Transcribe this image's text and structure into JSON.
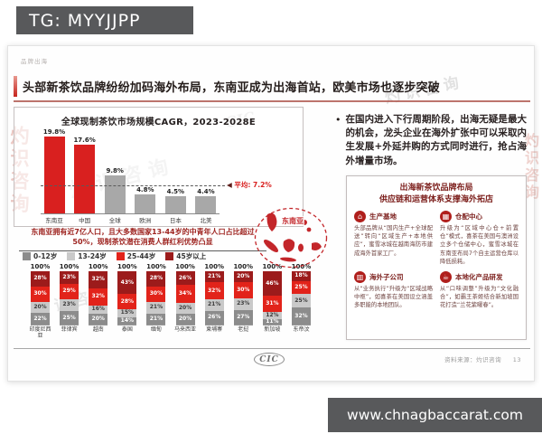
{
  "overlay": {
    "tg_label": "TG: MYYJJPP",
    "site_url": "www.chnagbaccarat.com"
  },
  "slide": {
    "eyebrow": "品牌出海",
    "title": "头部新茶饮品牌纷纷加码海外布局，东南亚成为出海首站，欧美市场也逐步突破",
    "insight": "东南亚拥有近7亿人口，且大多数国家13-44岁的中青年人口占比超过50%，现制茶饮潜在消费人群红利优势凸显",
    "map_label": "东南亚",
    "bullet": "在国内进入下行周期阶段，出海无疑是最大的机会，龙头企业在海外扩张中可以采取内生发展+外延并购的方式同时进行，抢占海外增量市场。",
    "card": {
      "title_line1": "出海新茶饮品牌布局",
      "title_line2": "供应链和运营体系支撑海外拓店",
      "items": [
        {
          "icon": "factory-icon",
          "glyph": "⌂",
          "label": "生产基地",
          "text": "头部品牌从“国内生产+全球配送”转向“区域生产+本地供应”，蜜雪冰城在越南海防市建成海外首家工厂。"
        },
        {
          "icon": "warehouse-icon",
          "glyph": "▦",
          "label": "仓配中心",
          "text": "升级为“区域中心仓+前置仓”模式，喜茶在美国与澳洲设立多个仓储中心，蜜雪冰城在东南亚布局7个自主运营仓库以降低损耗。"
        },
        {
          "icon": "office-building-icon",
          "glyph": "▥",
          "label": "海外子公司",
          "text": "从“业务执行”升级为“区域战略中枢”，如喜茶在美国设立涵盖多职能的本地团队。"
        },
        {
          "icon": "tea-cup-icon",
          "glyph": "☕",
          "label": "本地化产品研发",
          "text": "从“口味调整”升级为“文化融合”，如霸王茶姬结合新加坡国花打造“兰花紫曜春”。"
        }
      ]
    },
    "footer": {
      "logo": "CIC",
      "source": "资料来源：灼识咨询",
      "page": "13"
    },
    "watermark": {
      "cn": "灼识咨询",
      "en": "CIC"
    }
  },
  "chart_data": [
    {
      "type": "bar",
      "title": "全球现制茶饮市场规模CAGR，2023-2028E",
      "categories": [
        "东南亚",
        "中国",
        "全球",
        "欧洲",
        "日本",
        "北美"
      ],
      "values": [
        19.8,
        17.6,
        9.8,
        4.8,
        4.5,
        4.4
      ],
      "unit": "%",
      "bar_colors": [
        "#d9201f",
        "#d9201f",
        "#a8a8a8",
        "#a8a8a8",
        "#a8a8a8",
        "#a8a8a8"
      ],
      "average_line": {
        "marker": "◀",
        "label": "平均: 7.2%",
        "value": 7.2
      },
      "ylim": [
        0,
        22
      ],
      "grid": false
    },
    {
      "type": "bar",
      "stacked": true,
      "total_label": "100%",
      "categories": [
        "印度尼西亚",
        "菲律宾",
        "越南",
        "泰国",
        "缅甸",
        "马来西亚",
        "柬埔寨",
        "老挝",
        "新加坡",
        "东帝汶"
      ],
      "series": [
        {
          "name": "45岁以上",
          "color": "#9c1b1b",
          "text_color": "#ffffff",
          "values": [
            28,
            23,
            32,
            43,
            28,
            26,
            21,
            20,
            46,
            18
          ]
        },
        {
          "name": "25-44岁",
          "color": "#e2231a",
          "text_color": "#ffffff",
          "values": [
            30,
            29,
            32,
            28,
            30,
            34,
            32,
            30,
            31,
            25
          ]
        },
        {
          "name": "13-24岁",
          "color": "#c9c9c9",
          "text_color": "#3a3a3a",
          "values": [
            20,
            23,
            16,
            15,
            21,
            20,
            21,
            23,
            12,
            25
          ]
        },
        {
          "name": "0-12岁",
          "color": "#8c8c8c",
          "text_color": "#ffffff",
          "values": [
            22,
            25,
            20,
            14,
            21,
            20,
            26,
            27,
            11,
            32
          ]
        }
      ],
      "legend": [
        {
          "label": "0-12岁",
          "color": "#8c8c8c"
        },
        {
          "label": "13-24岁",
          "color": "#c9c9c9"
        },
        {
          "label": "25-44岁",
          "color": "#e2231a"
        },
        {
          "label": "45岁以上",
          "color": "#9c1b1b"
        }
      ],
      "ylim": [
        0,
        100
      ]
    }
  ]
}
